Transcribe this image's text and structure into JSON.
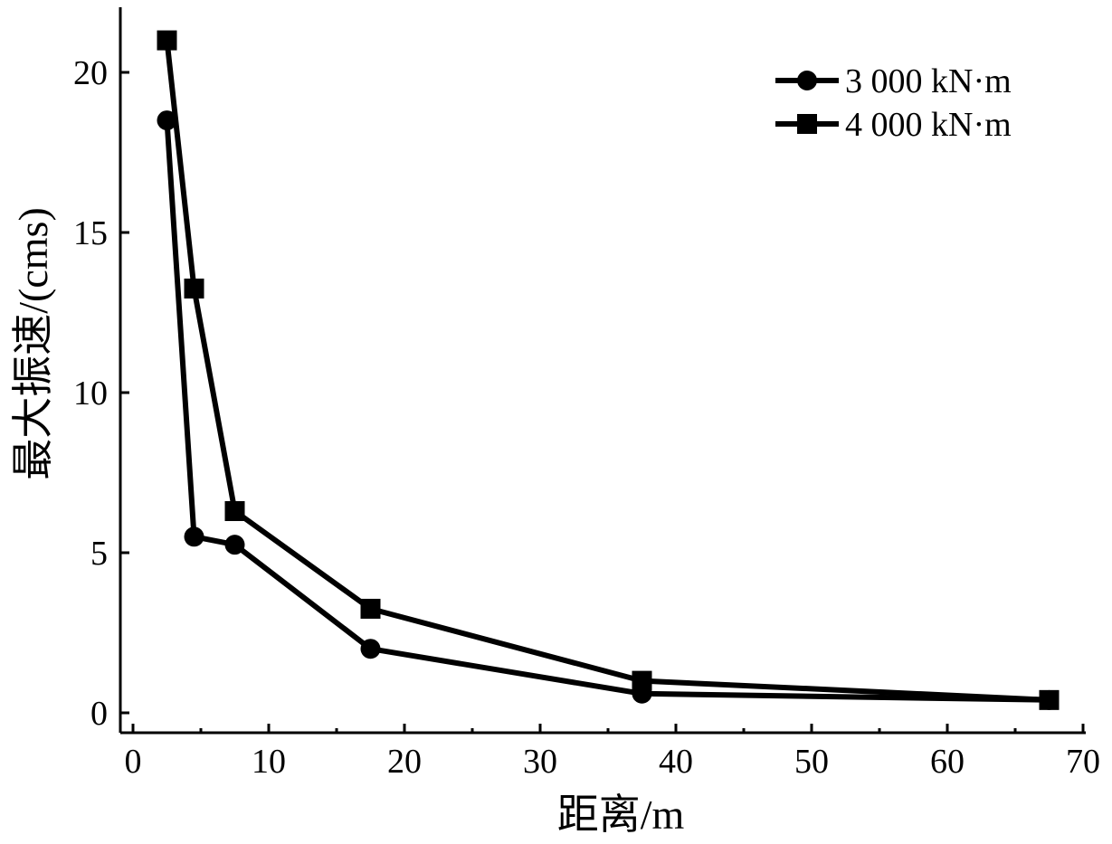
{
  "chart_data": {
    "type": "line",
    "xlabel": "距离/m",
    "ylabel": "最大振速/(cms)",
    "xlim": [
      0,
      70
    ],
    "ylim": [
      0,
      22
    ],
    "xticks": [
      0,
      10,
      20,
      30,
      40,
      50,
      60,
      70
    ],
    "yticks": [
      0,
      5,
      10,
      15,
      20
    ],
    "grid": false,
    "legend_position": "top-right",
    "series": [
      {
        "name": "3 000 kN·m",
        "marker": "circle",
        "color": "#000000",
        "x": [
          2.5,
          4.5,
          7.5,
          17.5,
          37.5,
          67.5
        ],
        "y": [
          18.5,
          5.5,
          5.25,
          2.0,
          0.6,
          0.4
        ]
      },
      {
        "name": "4 000 kN·m",
        "marker": "square",
        "color": "#000000",
        "x": [
          2.5,
          4.5,
          7.5,
          17.5,
          37.5,
          67.5
        ],
        "y": [
          21.0,
          13.25,
          6.3,
          3.25,
          1.0,
          0.4
        ]
      }
    ]
  }
}
